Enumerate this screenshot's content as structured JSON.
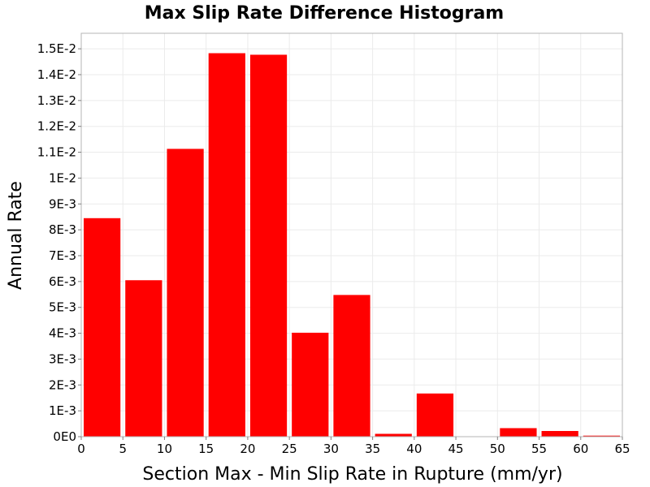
{
  "chart_data": {
    "type": "bar",
    "title": "Max Slip Rate Difference Histogram",
    "xlabel": "Section Max - Min Slip Rate in Rupture (mm/yr)",
    "ylabel": "Annual Rate",
    "bin_width": 5,
    "bin_starts": [
      0,
      5,
      10,
      15,
      20,
      25,
      30,
      35,
      40,
      45,
      50,
      55,
      60
    ],
    "values": [
      0.00845,
      0.00605,
      0.01113,
      0.01483,
      0.01477,
      0.00402,
      0.00548,
      0.00011,
      0.00167,
      0.0,
      0.00033,
      0.00022,
      4e-05
    ],
    "xlim": [
      0,
      65
    ],
    "ylim": [
      0,
      0.0156
    ],
    "x_ticks": [
      "0",
      "5",
      "10",
      "15",
      "20",
      "25",
      "30",
      "35",
      "40",
      "45",
      "50",
      "55",
      "60",
      "65"
    ],
    "y_ticks": [
      "0E0",
      "1E-3",
      "2E-3",
      "3E-3",
      "4E-3",
      "5E-3",
      "6E-3",
      "7E-3",
      "8E-3",
      "9E-3",
      "1E-2",
      "1.1E-2",
      "1.2E-2",
      "1.3E-2",
      "1.4E-2",
      "1.5E-2"
    ],
    "bar_color": "#ff0000",
    "grid": true
  }
}
